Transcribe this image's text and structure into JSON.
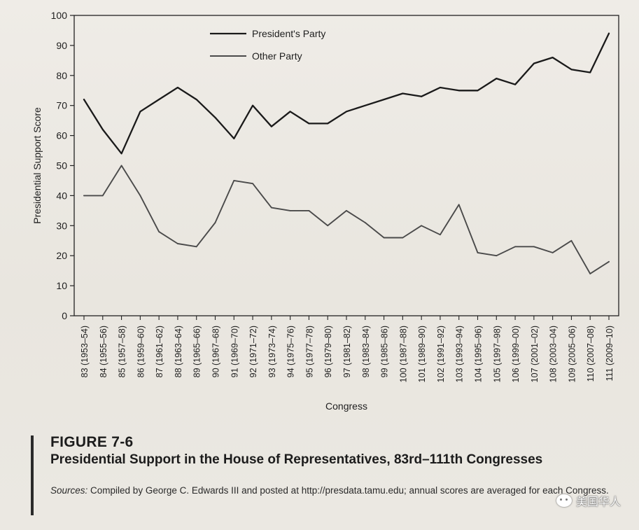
{
  "chart_data": {
    "type": "line",
    "title": "",
    "xlabel": "Congress",
    "ylabel": "Presidential Support Score",
    "ylim": [
      0,
      100
    ],
    "yticks": [
      0,
      10,
      20,
      30,
      40,
      50,
      60,
      70,
      80,
      90,
      100
    ],
    "grid": false,
    "legend_position": "top-left",
    "categories": [
      "83 (1953–54)",
      "84 (1955–56)",
      "85 (1957–58)",
      "86 (1959–60)",
      "87 (1961–62)",
      "88 (1963–64)",
      "89 (1965–66)",
      "90 (1967–68)",
      "91 (1969–70)",
      "92 (1971–72)",
      "93 (1973–74)",
      "94 (1975–76)",
      "95 (1977–78)",
      "96 (1979–80)",
      "97 (1981–82)",
      "98 (1983–84)",
      "99 (1985–86)",
      "100 (1987–88)",
      "101 (1989–90)",
      "102 (1991–92)",
      "103 (1993–94)",
      "104 (1995–96)",
      "105 (1997–98)",
      "106 (1999–00)",
      "107 (2001–02)",
      "108 (2003–04)",
      "109 (2005–06)",
      "110 (2007–08)",
      "111 (2009–10)"
    ],
    "series": [
      {
        "name": "President's Party",
        "color": "#1a1a1a",
        "values": [
          72,
          62,
          54,
          68,
          72,
          76,
          72,
          66,
          59,
          70,
          63,
          68,
          64,
          64,
          68,
          70,
          72,
          74,
          73,
          76,
          75,
          75,
          79,
          77,
          84,
          86,
          82,
          81,
          94
        ]
      },
      {
        "name": "Other Party",
        "color": "#4a4a4a",
        "values": [
          40,
          40,
          50,
          40,
          28,
          24,
          23,
          31,
          45,
          44,
          36,
          35,
          35,
          30,
          35,
          31,
          26,
          26,
          30,
          27,
          37,
          21,
          20,
          23,
          23,
          21,
          25,
          14,
          18
        ]
      }
    ]
  },
  "caption": {
    "figure_label": "FIGURE 7-6",
    "title": "Presidential Support in the House of Representatives, 83rd–111th Congresses",
    "source_prefix": "Sources:",
    "source_text": " Compiled by George C. Edwards III and posted at http://presdata.tamu.edu; annual scores are averaged for each Congress."
  },
  "watermark": {
    "text": "美国华人",
    "icon": "wechat-icon"
  }
}
